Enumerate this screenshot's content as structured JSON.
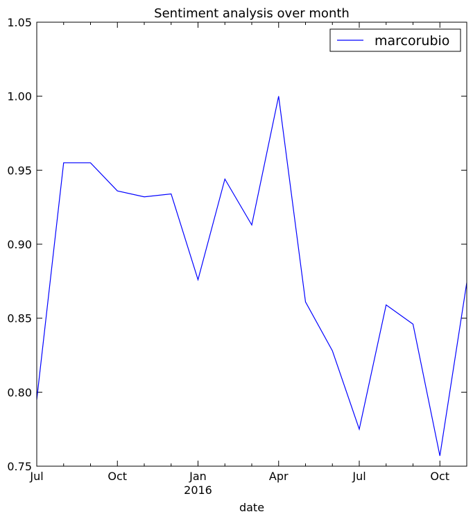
{
  "chart_data": {
    "type": "line",
    "title": "Sentiment analysis over month",
    "xlabel": "date",
    "ylabel": "",
    "ylim": [
      0.75,
      1.05
    ],
    "y_ticks": [
      0.75,
      0.8,
      0.85,
      0.9,
      0.95,
      1.0,
      1.05
    ],
    "y_tick_labels": [
      "0.75",
      "0.80",
      "0.85",
      "0.90",
      "0.95",
      "1.00",
      "1.05"
    ],
    "x_range": [
      "2015-07",
      "2016-11"
    ],
    "x_major_ticks": [
      {
        "x": "2015-07",
        "label": "Jul",
        "sublabel": ""
      },
      {
        "x": "2015-10",
        "label": "Oct",
        "sublabel": ""
      },
      {
        "x": "2016-01",
        "label": "Jan",
        "sublabel": "2016"
      },
      {
        "x": "2016-04",
        "label": "Apr",
        "sublabel": ""
      },
      {
        "x": "2016-07",
        "label": "Jul",
        "sublabel": ""
      },
      {
        "x": "2016-10",
        "label": "Oct",
        "sublabel": ""
      }
    ],
    "x_minor_ticks": [
      "2015-08",
      "2015-09",
      "2015-11",
      "2015-12",
      "2016-02",
      "2016-03",
      "2016-05",
      "2016-06",
      "2016-08",
      "2016-09"
    ],
    "grid": false,
    "legend": {
      "position": "top-right",
      "entries": [
        "marcorubio"
      ]
    },
    "series": [
      {
        "name": "marcorubio",
        "color": "#0000ff",
        "x": [
          "2015-07",
          "2015-08",
          "2015-09",
          "2015-10",
          "2015-11",
          "2015-12",
          "2016-01",
          "2016-02",
          "2016-03",
          "2016-04",
          "2016-05",
          "2016-06",
          "2016-07",
          "2016-08",
          "2016-09",
          "2016-10",
          "2016-11"
        ],
        "values": [
          0.795,
          0.955,
          0.955,
          0.936,
          0.932,
          0.934,
          0.876,
          0.944,
          0.913,
          1.0,
          0.861,
          0.828,
          0.775,
          0.859,
          0.846,
          0.757,
          0.874
        ]
      }
    ]
  }
}
